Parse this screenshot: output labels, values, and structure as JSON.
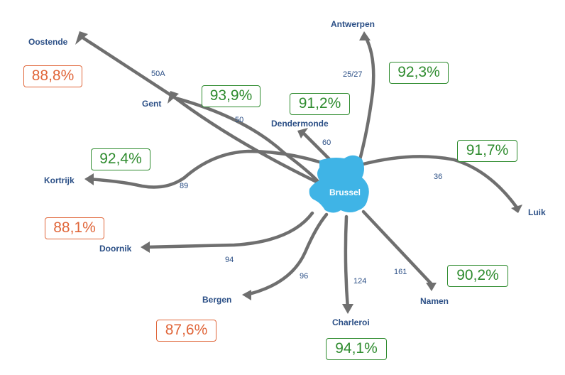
{
  "hub": {
    "name": "Brussel",
    "color": "#3fb4e6"
  },
  "colors": {
    "route": "#6f6f6f",
    "city_label": "#2b4f86",
    "good": "#2e8b2e",
    "bad": "#e0663a"
  },
  "routes": [
    {
      "id": "oostende",
      "destination": "Oostende",
      "line": "50A",
      "punctuality": "88,8%",
      "status": "bad"
    },
    {
      "id": "gent",
      "destination": "Gent",
      "line": "50",
      "punctuality": "93,9%",
      "status": "good"
    },
    {
      "id": "antwerpen",
      "destination": "Antwerpen",
      "line": "25/27",
      "punctuality": "92,3%",
      "status": "good"
    },
    {
      "id": "dendermonde",
      "destination": "Dendermonde",
      "line": "60",
      "punctuality": "91,2%",
      "status": "good"
    },
    {
      "id": "kortrijk",
      "destination": "Kortrijk",
      "line": "89",
      "punctuality": "92,4%",
      "status": "good"
    },
    {
      "id": "luik",
      "destination": "Luik",
      "line": "36",
      "punctuality": "91,7%",
      "status": "good"
    },
    {
      "id": "doornik",
      "destination": "Doornik",
      "line": "94",
      "punctuality": "88,1%",
      "status": "bad"
    },
    {
      "id": "bergen",
      "destination": "Bergen",
      "line": "96",
      "punctuality": "87,6%",
      "status": "bad"
    },
    {
      "id": "charleroi",
      "destination": "Charleroi",
      "line": "124",
      "punctuality": "94,1%",
      "status": "good"
    },
    {
      "id": "namen",
      "destination": "Namen",
      "line": "161",
      "punctuality": "90,2%",
      "status": "good"
    }
  ]
}
